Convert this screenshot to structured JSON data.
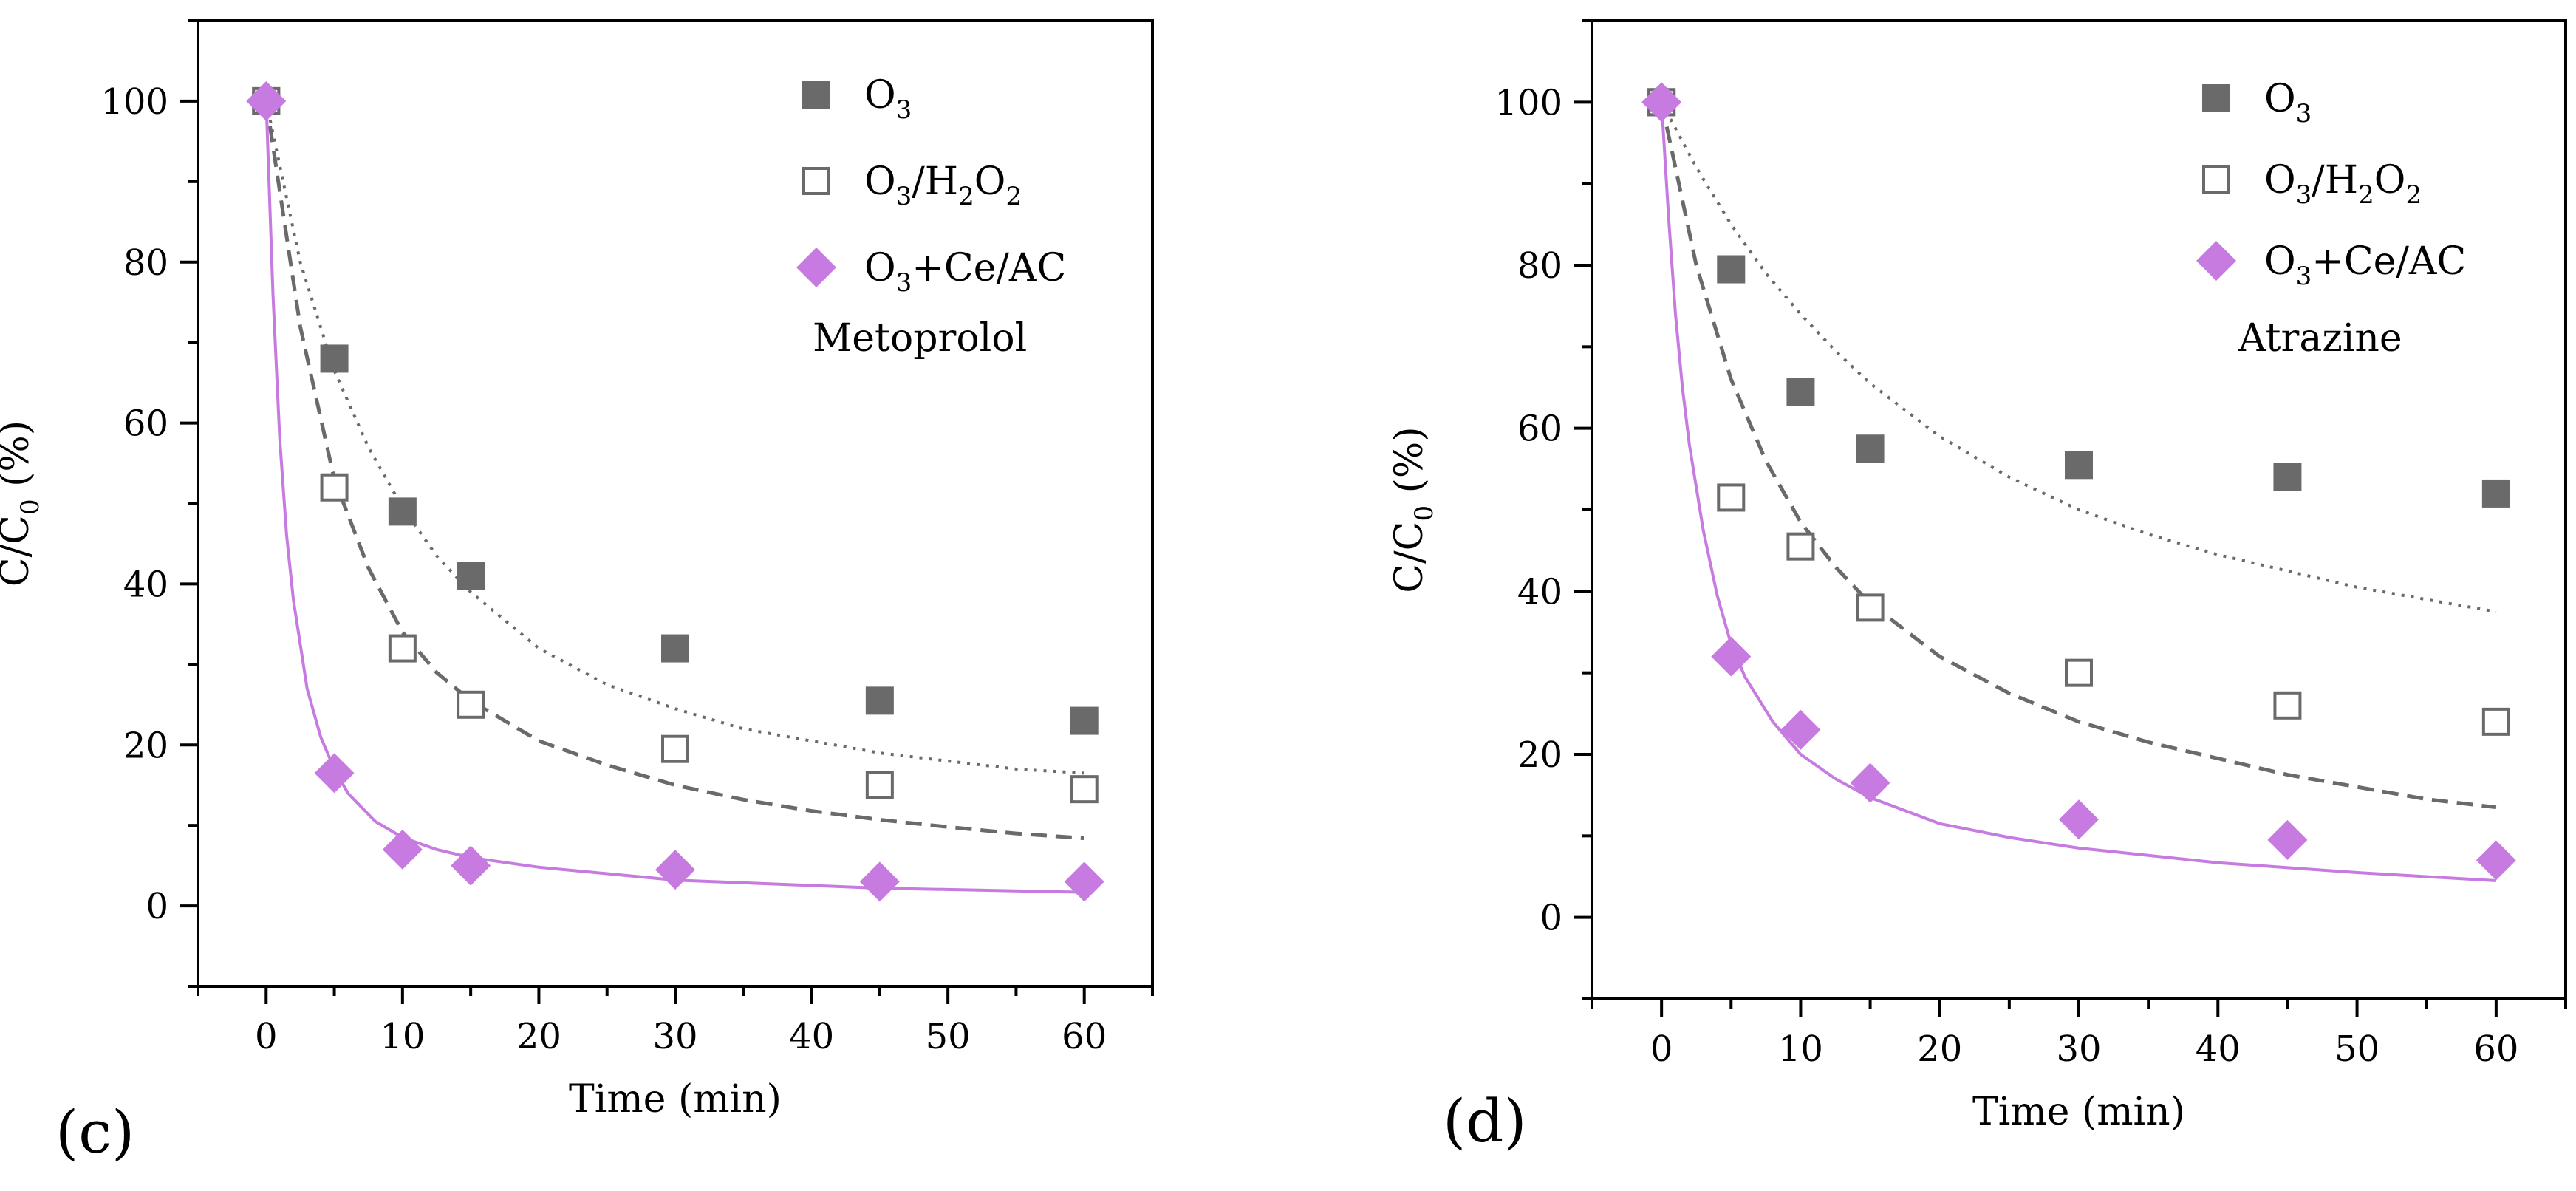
{
  "colors": {
    "o3": "#6a6a6a",
    "o3_h2o2": "#6a6a6a",
    "ce_ac": "#c77be0",
    "axis": "#000000"
  },
  "chart_data": [
    {
      "type": "scatter",
      "panel_label": "(c)",
      "annotation": "Metoprolol",
      "xlabel": "Time (min)",
      "ylabel_parts": [
        "C/C",
        "0",
        " (%)"
      ],
      "xlim": [
        -5,
        65
      ],
      "ylim": [
        -10,
        110
      ],
      "xticks": [
        0,
        10,
        20,
        30,
        40,
        50,
        60
      ],
      "yticks": [
        0,
        20,
        40,
        60,
        80,
        100
      ],
      "legend_position": "top-right",
      "series": [
        {
          "name": "O3",
          "legend_parts": [
            "O",
            "3",
            ""
          ],
          "marker": "filled-square",
          "fit_line": "dotted",
          "x": [
            0,
            5,
            10,
            15,
            30,
            45,
            60
          ],
          "values": [
            100,
            68,
            49,
            41,
            32,
            25.5,
            23
          ],
          "fit_x": [
            0,
            2.5,
            5,
            7.5,
            10,
            12.5,
            15,
            20,
            25,
            30,
            35,
            40,
            45,
            50,
            55,
            60
          ],
          "fit_values": [
            100,
            80,
            66.5,
            57,
            49.5,
            43.5,
            39,
            32,
            27.5,
            24.5,
            22,
            20.5,
            19,
            18,
            17,
            16.5
          ]
        },
        {
          "name": "O3/H2O2",
          "legend_parts": [
            "O",
            "3",
            "/H",
            "2",
            "O",
            "2",
            ""
          ],
          "marker": "open-square",
          "fit_line": "dashed",
          "x": [
            0,
            5,
            10,
            15,
            30,
            45,
            60
          ],
          "values": [
            100,
            52,
            32,
            25,
            19.5,
            15,
            14.5
          ],
          "fit_x": [
            0,
            2.5,
            5,
            7.5,
            10,
            12.5,
            15,
            20,
            25,
            30,
            35,
            40,
            45,
            50,
            55,
            60
          ],
          "fit_values": [
            100,
            72,
            53,
            42,
            34,
            29,
            25.5,
            20.5,
            17.5,
            15,
            13.2,
            11.8,
            10.7,
            9.8,
            9,
            8.4
          ]
        },
        {
          "name": "O3+Ce/AC",
          "legend_parts": [
            "O",
            "3",
            "+Ce/AC"
          ],
          "marker": "diamond",
          "fit_line": "solid",
          "x": [
            0,
            5,
            10,
            15,
            30,
            45,
            60
          ],
          "values": [
            100,
            16.5,
            7,
            5,
            4.5,
            3,
            3
          ],
          "fit_x": [
            0,
            0.5,
            1,
            1.5,
            2,
            3,
            4,
            5,
            6,
            8,
            10,
            12.5,
            15,
            20,
            30,
            45,
            60
          ],
          "fit_values": [
            100,
            76,
            58,
            46,
            38,
            27,
            21,
            17,
            14,
            10.5,
            8.5,
            7,
            6,
            4.8,
            3.2,
            2.2,
            1.7
          ]
        }
      ]
    },
    {
      "type": "scatter",
      "panel_label": "(d)",
      "annotation": "Atrazine",
      "xlabel": "Time (min)",
      "ylabel_parts": [
        "C/C",
        "0",
        " (%)"
      ],
      "xlim": [
        -5,
        65
      ],
      "ylim": [
        -10,
        110
      ],
      "xticks": [
        0,
        10,
        20,
        30,
        40,
        50,
        60
      ],
      "yticks": [
        0,
        20,
        40,
        60,
        80,
        100
      ],
      "legend_position": "top-right",
      "series": [
        {
          "name": "O3",
          "legend_parts": [
            "O",
            "3",
            ""
          ],
          "marker": "filled-square",
          "fit_line": "dotted",
          "x": [
            0,
            5,
            10,
            15,
            30,
            45,
            60
          ],
          "values": [
            100,
            79.5,
            64.5,
            57.5,
            55.5,
            54,
            52
          ],
          "fit_x": [
            0,
            2.5,
            5,
            7.5,
            10,
            12.5,
            15,
            20,
            25,
            30,
            35,
            40,
            45,
            50,
            55,
            60
          ],
          "fit_values": [
            100,
            92,
            85,
            79,
            74,
            69.5,
            65.5,
            59,
            54,
            50,
            47,
            44.5,
            42.5,
            40.5,
            39,
            37.5
          ]
        },
        {
          "name": "O3/H2O2",
          "legend_parts": [
            "O",
            "3",
            "/H",
            "2",
            "O",
            "2",
            ""
          ],
          "marker": "open-square",
          "fit_line": "dashed",
          "x": [
            0,
            5,
            10,
            15,
            30,
            45,
            60
          ],
          "values": [
            100,
            51.5,
            45.5,
            38,
            30,
            26,
            24
          ],
          "fit_x": [
            0,
            2.5,
            5,
            7.5,
            10,
            12.5,
            15,
            20,
            25,
            30,
            35,
            40,
            45,
            50,
            55,
            60
          ],
          "fit_values": [
            100,
            80,
            66,
            56,
            48.5,
            43,
            38.5,
            32,
            27.5,
            24,
            21.5,
            19.5,
            17.5,
            16,
            14.5,
            13.5
          ]
        },
        {
          "name": "O3+Ce/AC",
          "legend_parts": [
            "O",
            "3",
            "+Ce/AC"
          ],
          "marker": "diamond",
          "fit_line": "solid",
          "x": [
            0,
            5,
            10,
            15,
            30,
            45,
            60
          ],
          "values": [
            100,
            32,
            23,
            16.5,
            12,
            9.5,
            7
          ],
          "fit_x": [
            0,
            0.5,
            1,
            1.5,
            2,
            3,
            4,
            5,
            6,
            8,
            10,
            12.5,
            15,
            20,
            25,
            30,
            40,
            50,
            60
          ],
          "fit_values": [
            100,
            86,
            74,
            65,
            58,
            47.5,
            39.5,
            33.5,
            29.5,
            24,
            20,
            17,
            14.7,
            11.5,
            9.8,
            8.5,
            6.7,
            5.5,
            4.5
          ]
        }
      ]
    }
  ]
}
